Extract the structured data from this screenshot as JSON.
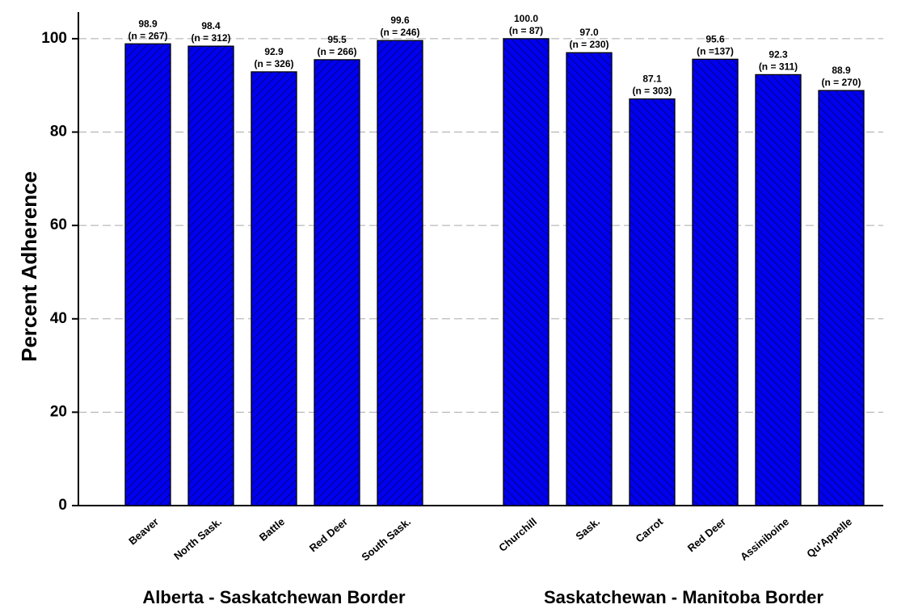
{
  "chart_data": {
    "type": "bar",
    "y_label": "Percent Adherence",
    "categories": [
      "Beaver",
      "North Sask.",
      "Battle",
      "Red Deer",
      "South Sask.",
      null,
      "Churchill",
      "Sask.",
      "Carrot",
      "Red Deer",
      "Assiniboine",
      "Qu'Appelle"
    ],
    "values": [
      98.9,
      98.4,
      92.9,
      95.5,
      99.6,
      null,
      100.0,
      97.0,
      87.1,
      95.6,
      92.3,
      88.9
    ],
    "value_labels": [
      "98.9",
      "98.4",
      "92.9",
      "95.5",
      "99.6",
      null,
      "100.0",
      "97.0",
      "87.1",
      "95.6",
      "92.3",
      "88.9"
    ],
    "sample_labels": [
      "(n = 267)",
      "(n = 312)",
      "(n = 326)",
      "(n = 266)",
      "(n = 246)",
      null,
      "(n = 87)",
      "(n = 230)",
      "(n = 303)",
      "(n =137)",
      "(n = 311)",
      "(n = 270)"
    ],
    "groups": [
      {
        "label": "Alberta - Saskatchewan Border",
        "hatch": "backslash"
      },
      {
        "label": "Saskatchewan - Manitoba Border",
        "hatch": "slash"
      }
    ],
    "color": "#0000ee",
    "ylim": [
      0,
      105
    ],
    "yticks": [
      0,
      20,
      40,
      60,
      80,
      100
    ],
    "grid": true
  }
}
